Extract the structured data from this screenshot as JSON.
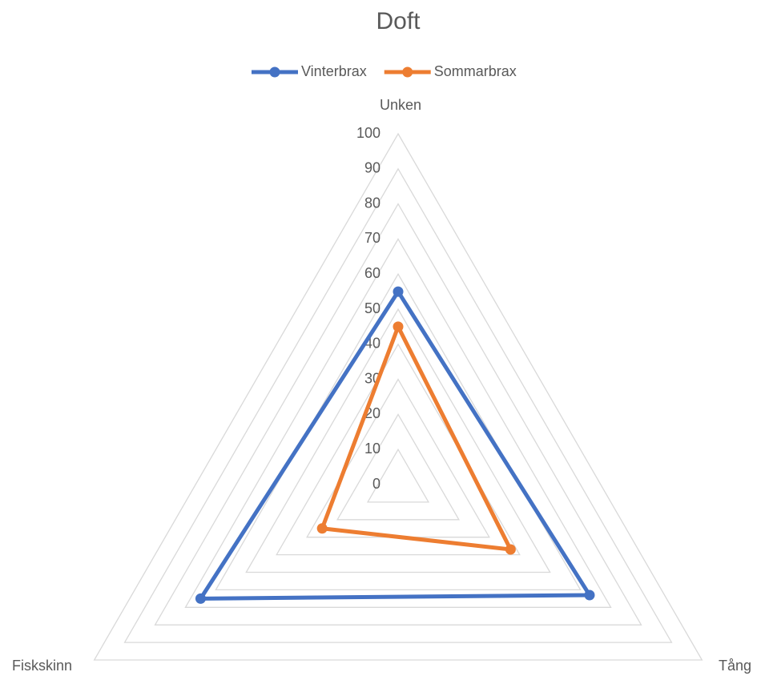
{
  "chart_data": {
    "type": "radar",
    "title": "Doft",
    "categories": [
      "Unken",
      "Tång",
      "Fiskskinn"
    ],
    "series": [
      {
        "name": "Vinterbrax",
        "color": "#4472c4",
        "values": [
          55,
          63,
          65
        ]
      },
      {
        "name": "Sommarbrax",
        "color": "#ed7d31",
        "values": [
          45,
          37,
          25
        ]
      }
    ],
    "rlim": [
      0,
      100
    ],
    "rticks": [
      0,
      10,
      20,
      30,
      40,
      50,
      60,
      70,
      80,
      90,
      100
    ],
    "grid": true,
    "legend": "top"
  }
}
